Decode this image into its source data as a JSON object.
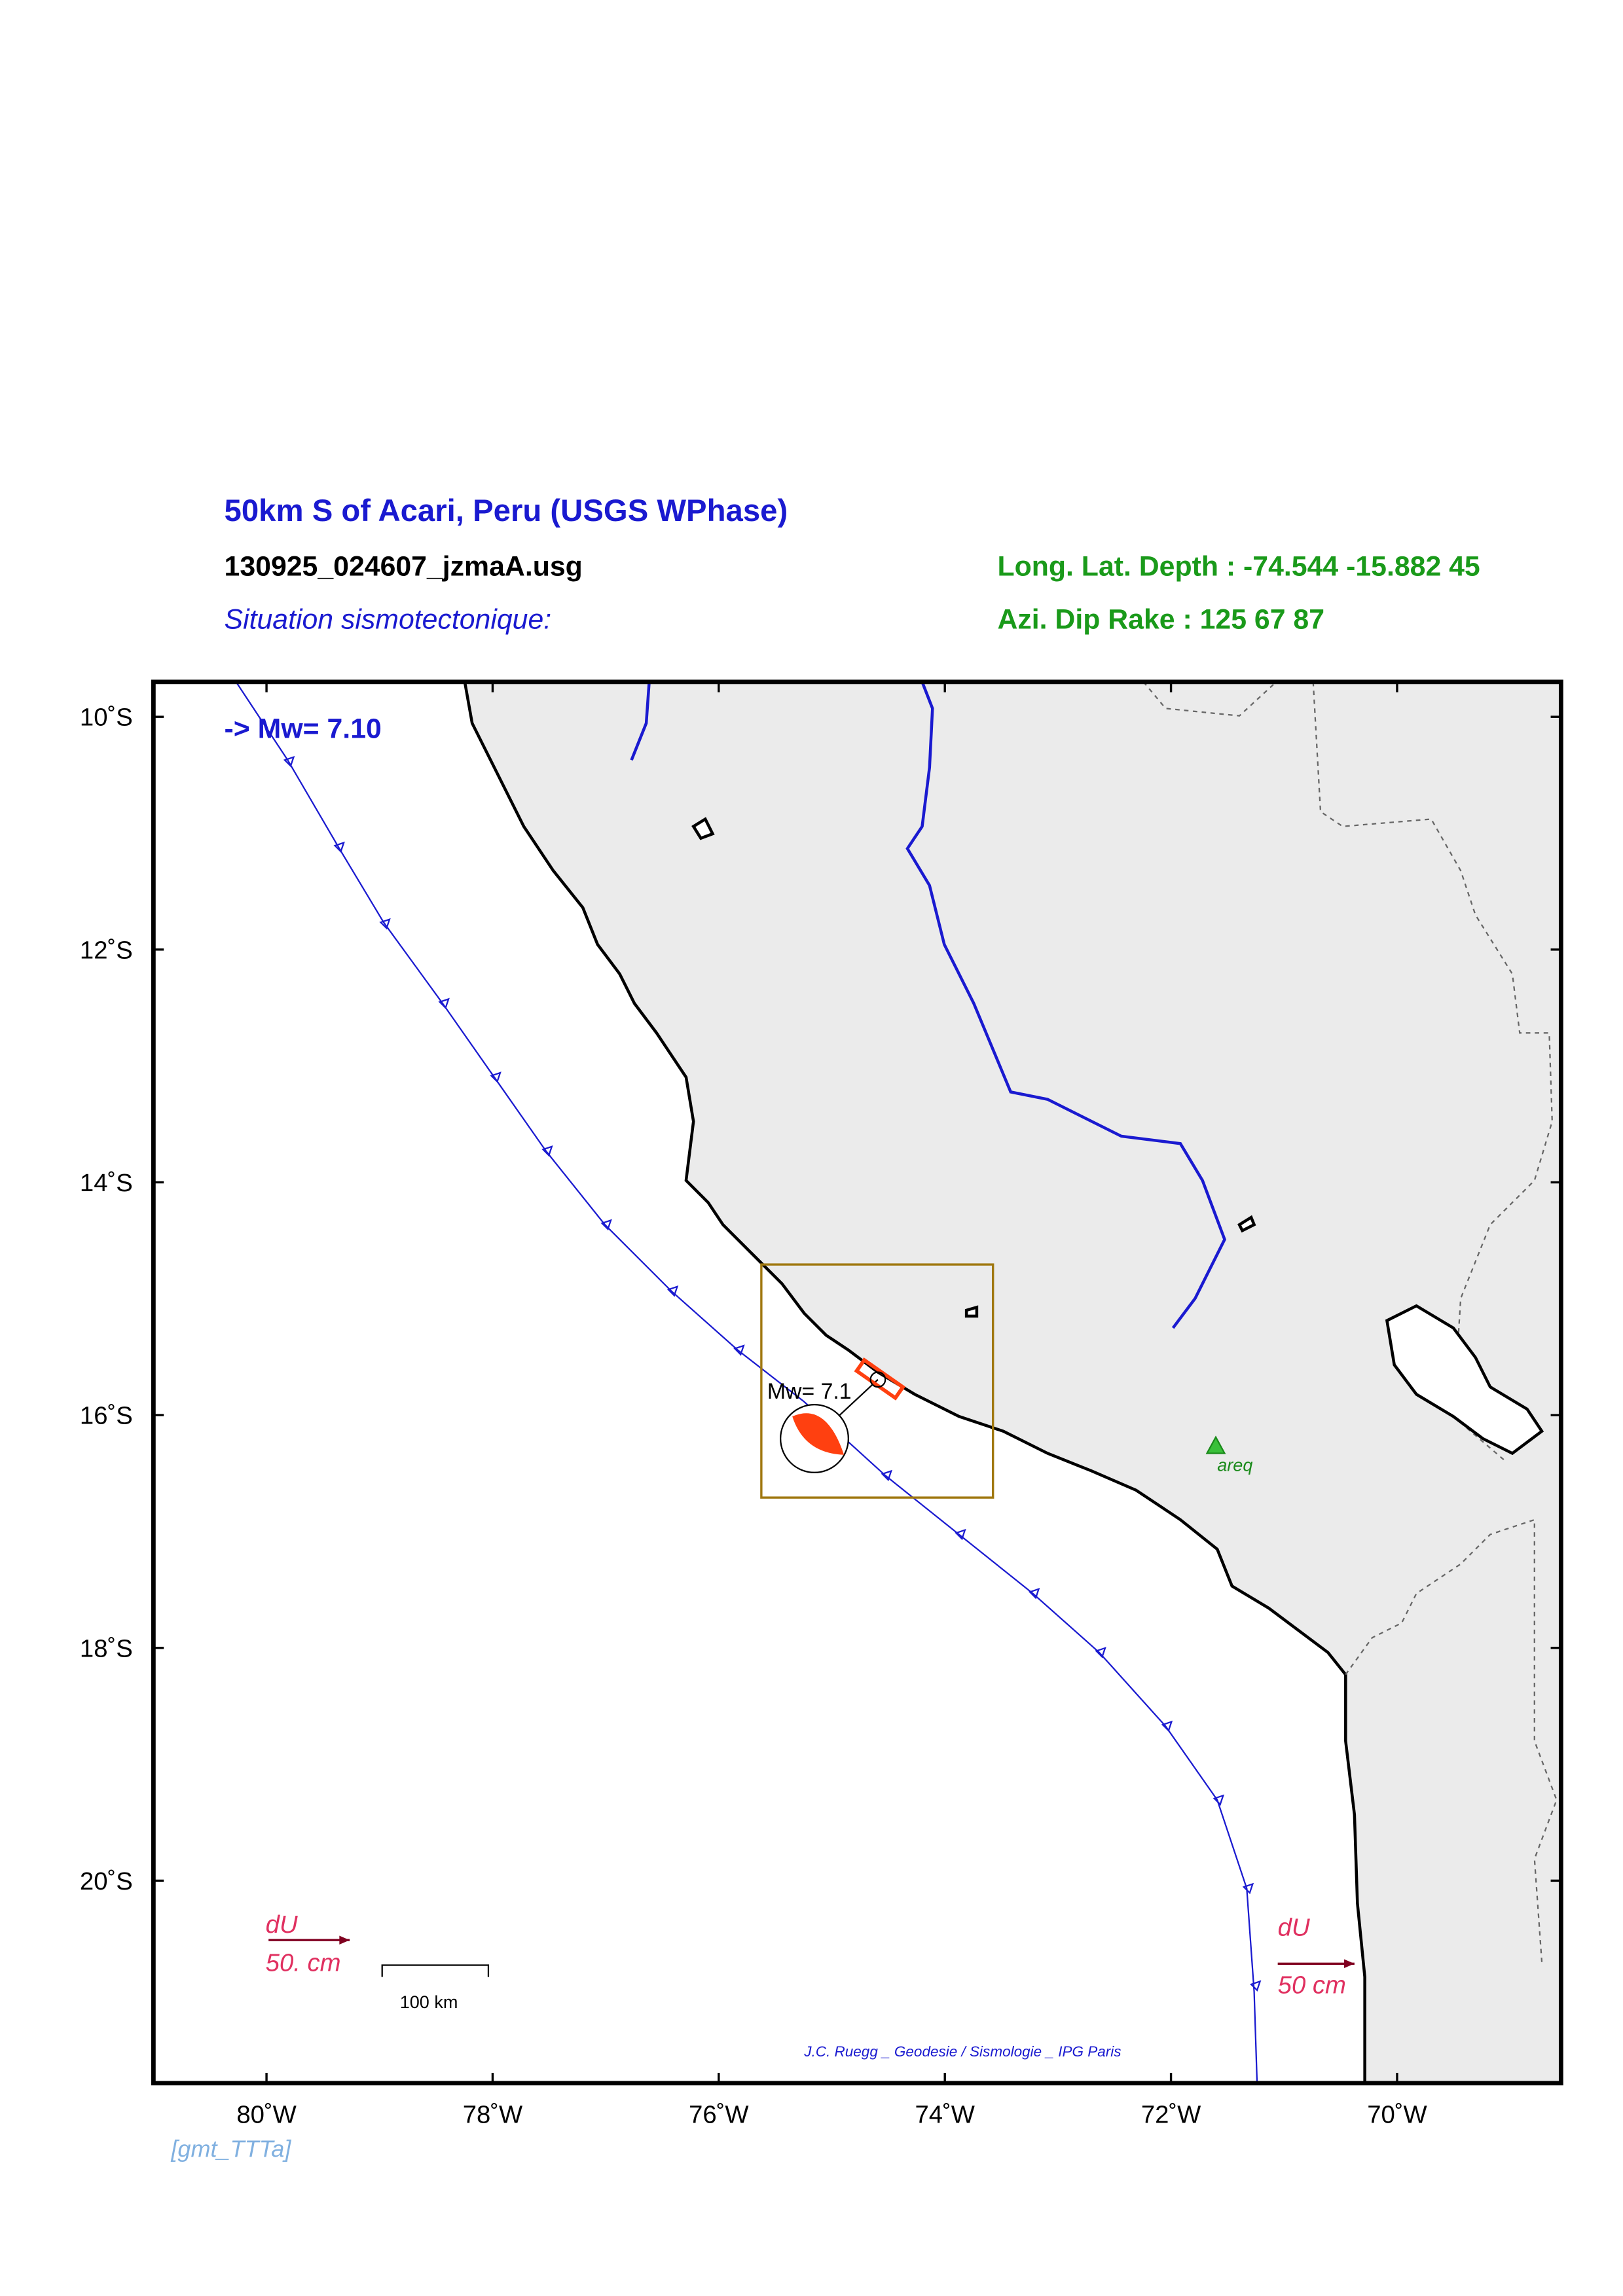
{
  "header": {
    "title": "50km S of Acari, Peru (USGS WPhase)",
    "file": "130925_024607_jzmaA.usg",
    "subtitle": "Situation sismotectonique:",
    "location": "Long. Lat. Depth : -74.544 -15.882 45",
    "mechanism": "Azi.  Dip   Rake :  125 67 87"
  },
  "map": {
    "magnitude_label": "-> Mw= 7.10",
    "event_label": "Mw= 7.1",
    "station": "areq",
    "xlim": [
      -81,
      -68.55
    ],
    "ylim": [
      -21.74,
      -9.7
    ],
    "xticks": [
      {
        "value": -80,
        "label": "80˚W"
      },
      {
        "value": -78,
        "label": "78˚W"
      },
      {
        "value": -76,
        "label": "76˚W"
      },
      {
        "value": -74,
        "label": "74˚W"
      },
      {
        "value": -72,
        "label": "72˚W"
      },
      {
        "value": -70,
        "label": "70˚W"
      }
    ],
    "yticks": [
      {
        "value": -10,
        "label": "10˚S"
      },
      {
        "value": -12,
        "label": "12˚S"
      },
      {
        "value": -14,
        "label": "14˚S"
      },
      {
        "value": -16,
        "label": "16˚S"
      },
      {
        "value": -18,
        "label": "18˚S"
      },
      {
        "value": -20,
        "label": "20˚S"
      }
    ],
    "legend_left": {
      "label": "dU",
      "scale": "50.  cm"
    },
    "legend_right": {
      "label": "dU",
      "scale": "50 cm"
    },
    "scale_bar": "100 km",
    "credit": "J.C. Ruegg _ Geodesie / Sismologie _ IPG Paris"
  },
  "footer": "[gmt_TTTa]"
}
